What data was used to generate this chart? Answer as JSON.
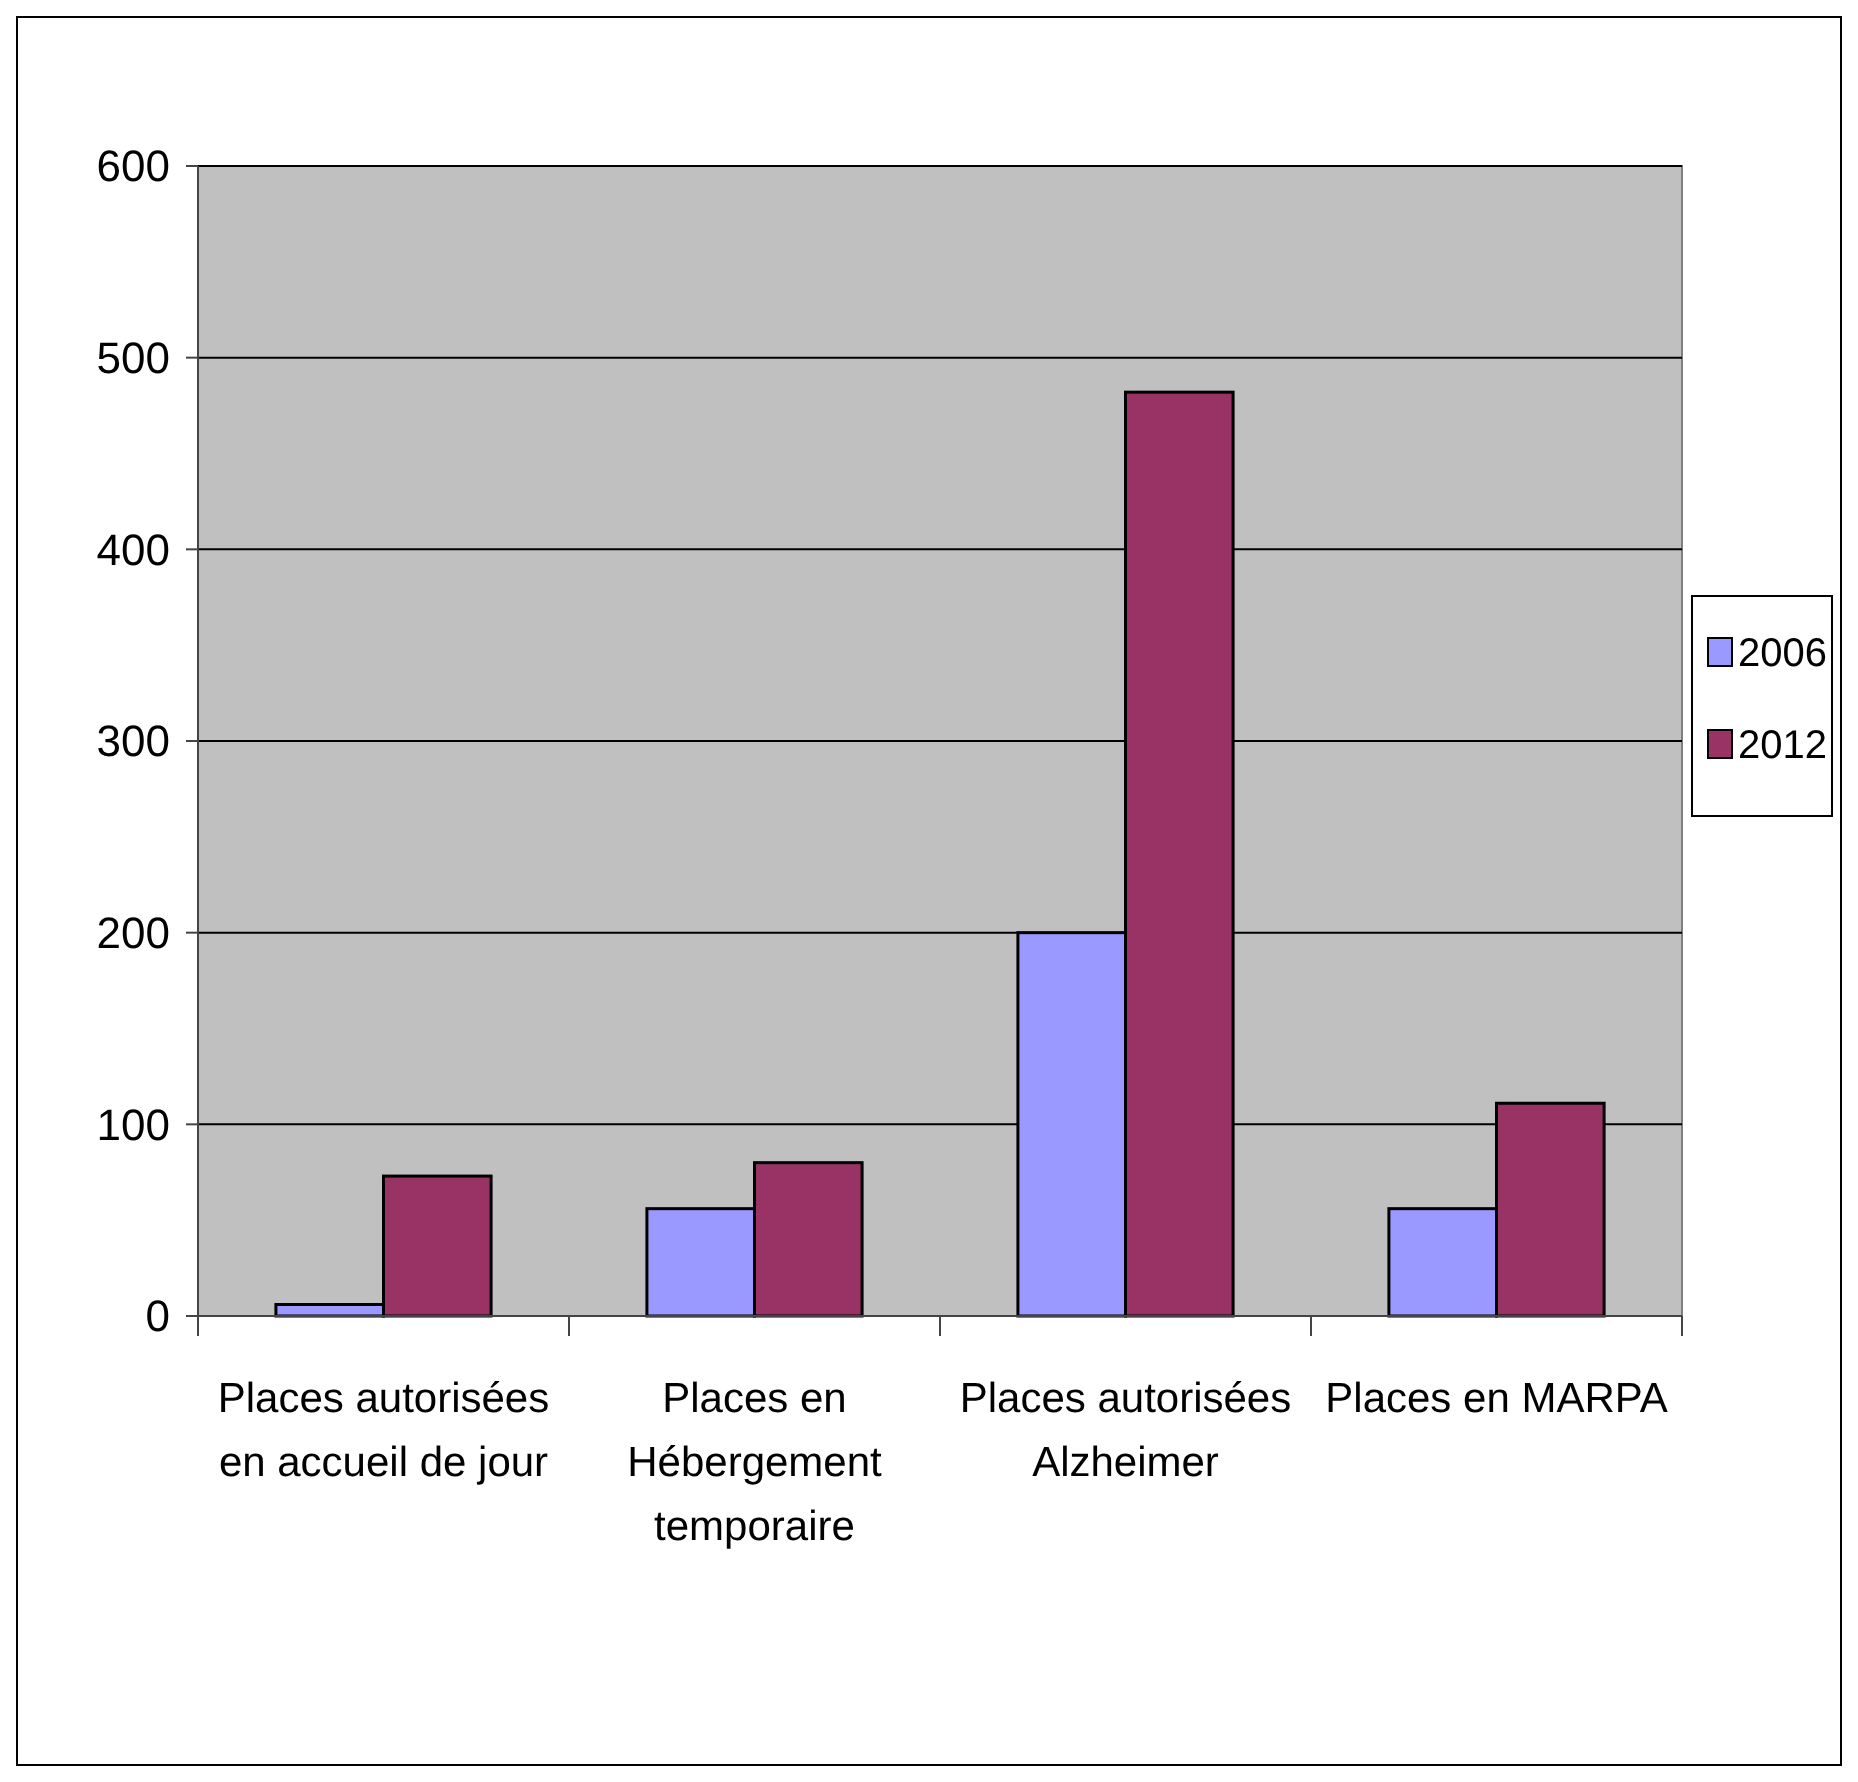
{
  "chart_data": {
    "type": "bar",
    "categories": [
      "Places autorisées en accueil de jour",
      "Places en Hébergement temporaire",
      "Places autorisées Alzheimer",
      "Places en MARPA"
    ],
    "series": [
      {
        "name": "2006",
        "color": "#9999ff",
        "values": [
          6,
          56,
          200,
          56
        ]
      },
      {
        "name": "2012",
        "color": "#993366",
        "values": [
          73,
          80,
          482,
          111
        ]
      }
    ],
    "ylim": [
      0,
      600
    ],
    "yticks": [
      0,
      100,
      200,
      300,
      400,
      500,
      600
    ],
    "grid": "y",
    "legend": "right"
  }
}
